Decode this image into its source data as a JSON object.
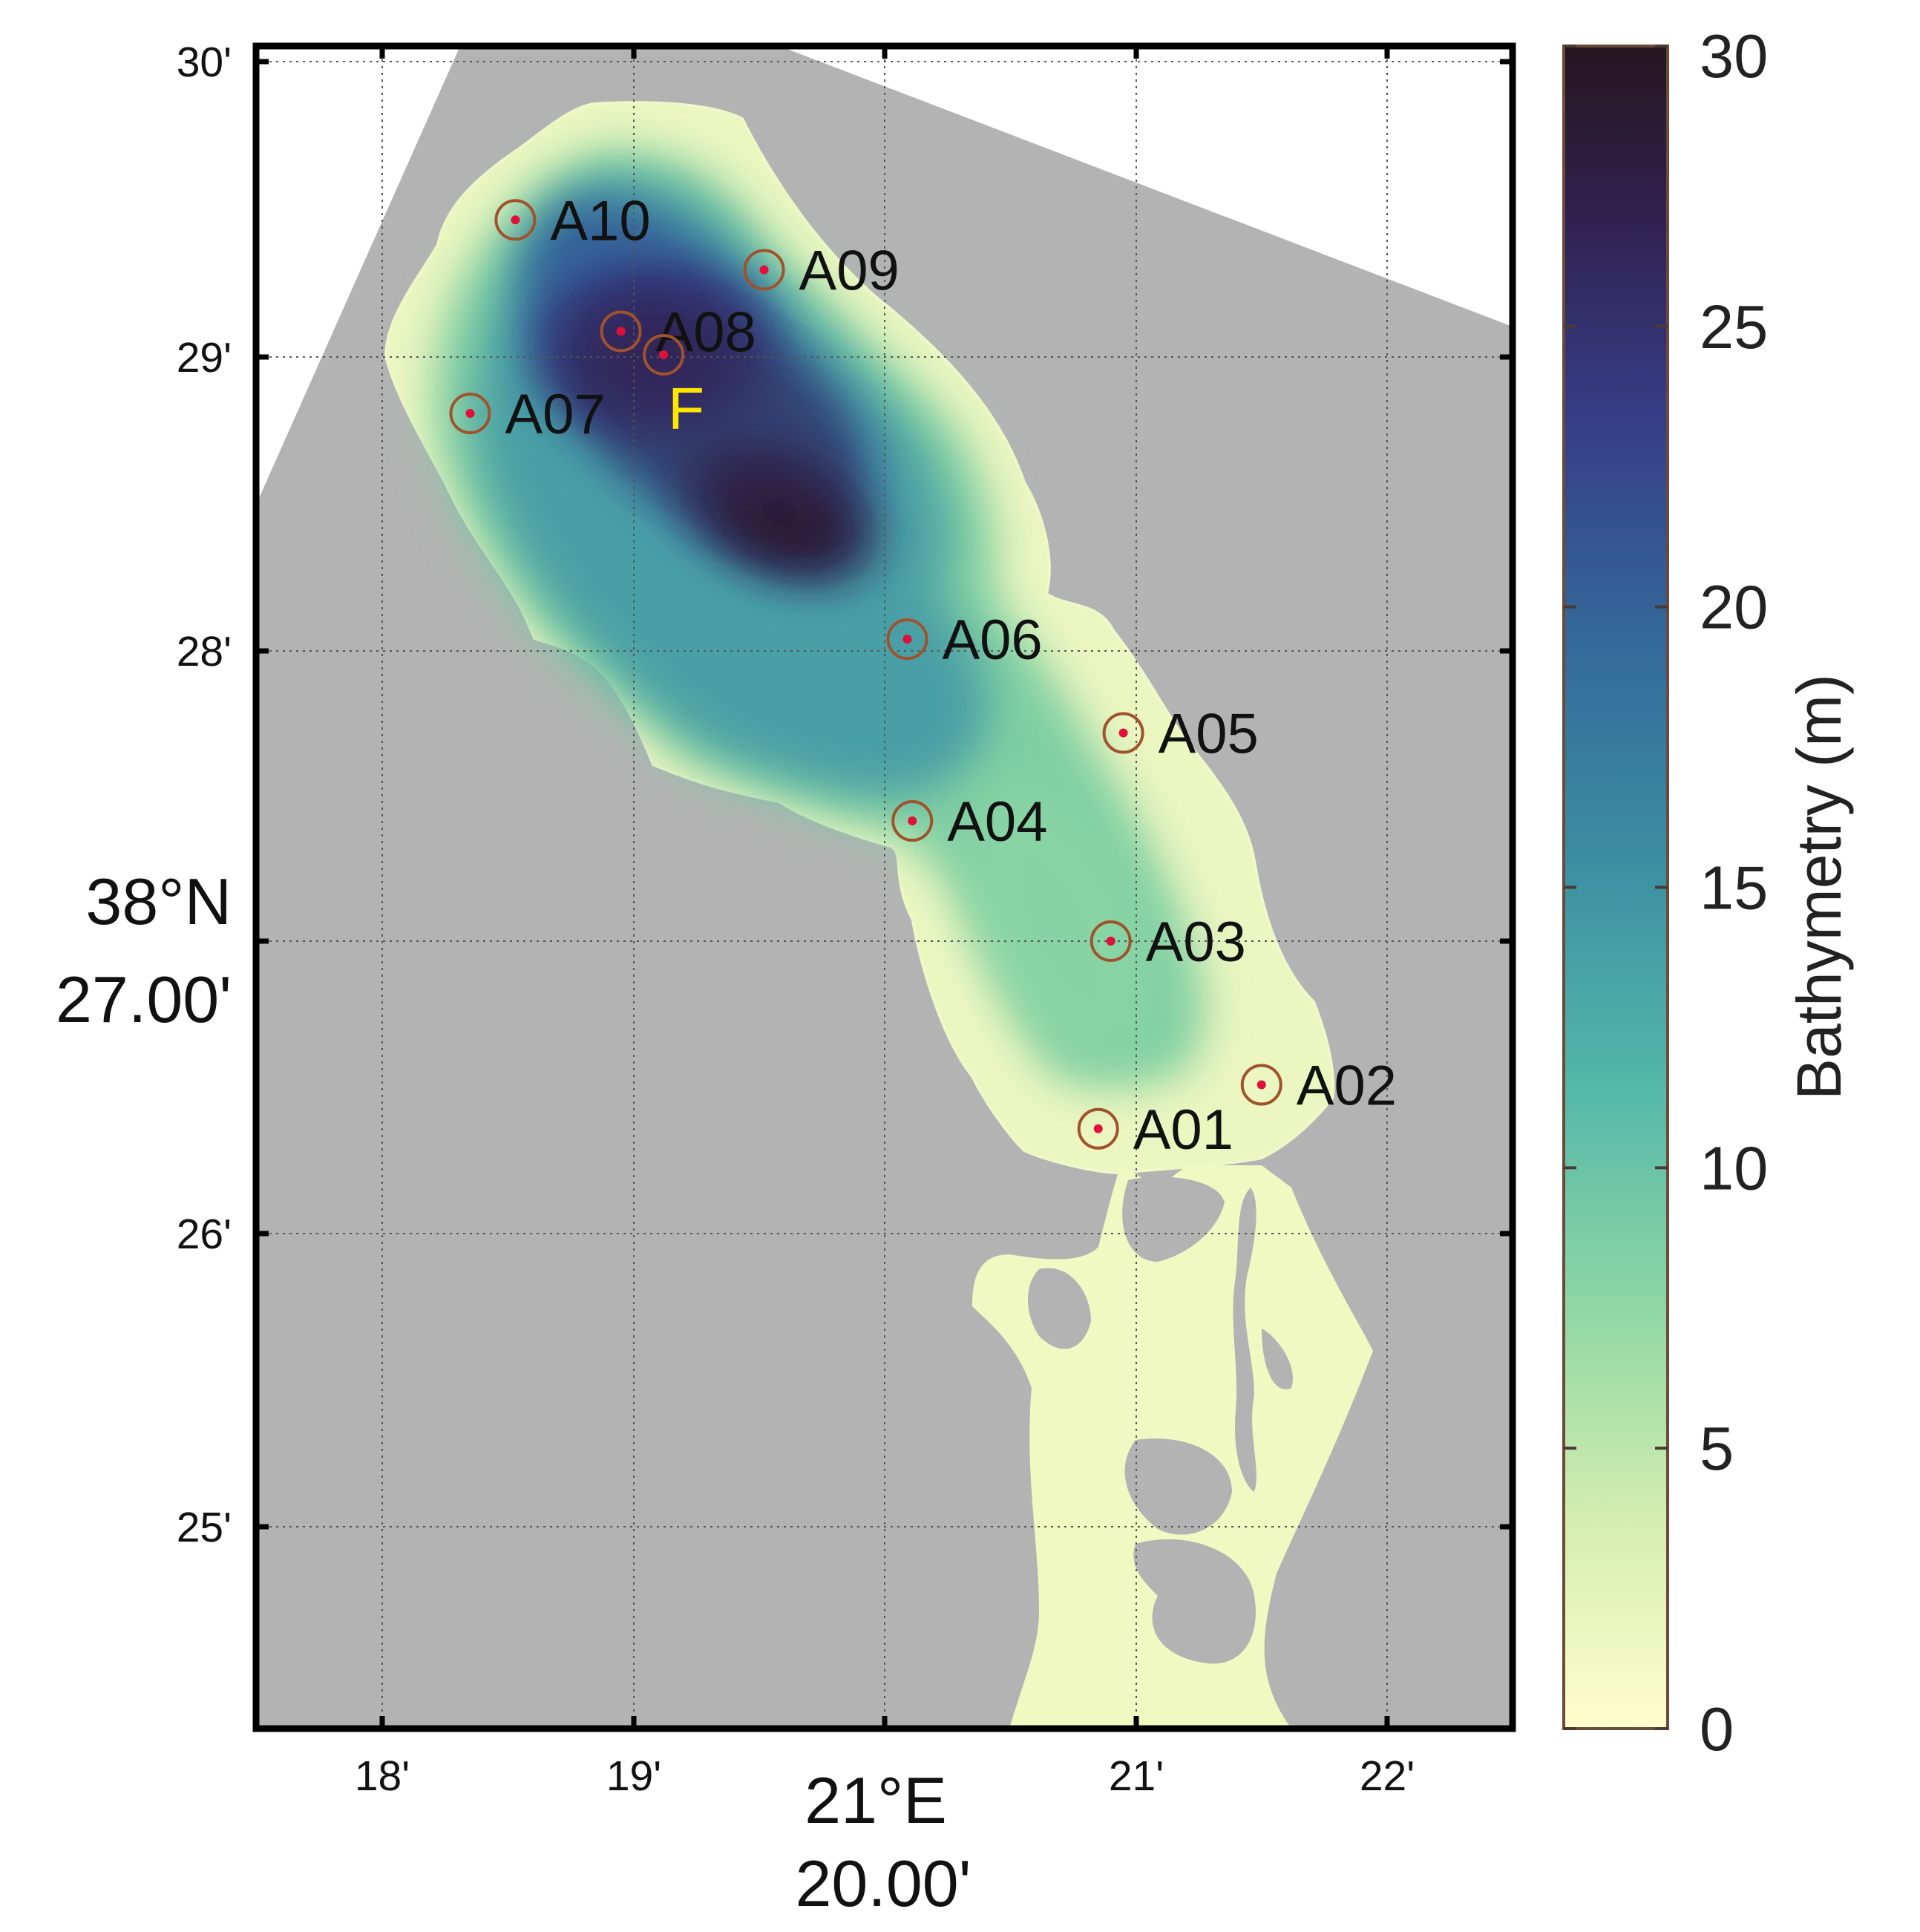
{
  "map": {
    "longitude_ticks": [
      "18'",
      "19'",
      "20.00'",
      "21'",
      "22'"
    ],
    "longitude_degree_label": "21°E",
    "longitude_minute_label": "20.00'",
    "latitude_ticks": [
      "30'",
      "29'",
      "28'",
      "27.00'",
      "26'",
      "25'"
    ],
    "latitude_degree_label": "38°N",
    "latitude_minute_label": "27.00'",
    "land_color": "#b3b3b3",
    "grid": true,
    "stations": [
      {
        "name": "A01",
        "lon_min": 20.85,
        "lat_min": 26.36
      },
      {
        "name": "A02",
        "lon_min": 21.5,
        "lat_min": 26.51
      },
      {
        "name": "A03",
        "lon_min": 20.9,
        "lat_min": 27.0
      },
      {
        "name": "A04",
        "lon_min": 20.11,
        "lat_min": 27.41
      },
      {
        "name": "A05",
        "lon_min": 20.95,
        "lat_min": 27.71
      },
      {
        "name": "A06",
        "lon_min": 20.09,
        "lat_min": 28.03
      },
      {
        "name": "A07",
        "lon_min": 18.35,
        "lat_min": 28.8
      },
      {
        "name": "A08",
        "lon_min": 18.95,
        "lat_min": 29.08
      },
      {
        "name": "A09",
        "lon_min": 19.52,
        "lat_min": 29.29
      },
      {
        "name": "A10",
        "lon_min": 18.53,
        "lat_min": 29.46
      }
    ],
    "special_marker": {
      "name": "F",
      "lon_min": 19.12,
      "lat_min": 29.0,
      "color": "#ffe600"
    },
    "station_ring_color": "#a0522d",
    "station_dot_color": "#e0103a"
  },
  "colorbar": {
    "title": "Bathymetry (m)",
    "ticks": [
      "0",
      "5",
      "10",
      "15",
      "20",
      "25",
      "30"
    ],
    "min": 0,
    "max": 30,
    "colormap_stops": [
      "#fffdcd",
      "#d6efb0",
      "#8fd7a4",
      "#55b8a9",
      "#3b8da2",
      "#34689a",
      "#363d86",
      "#30214f",
      "#26161e"
    ]
  }
}
